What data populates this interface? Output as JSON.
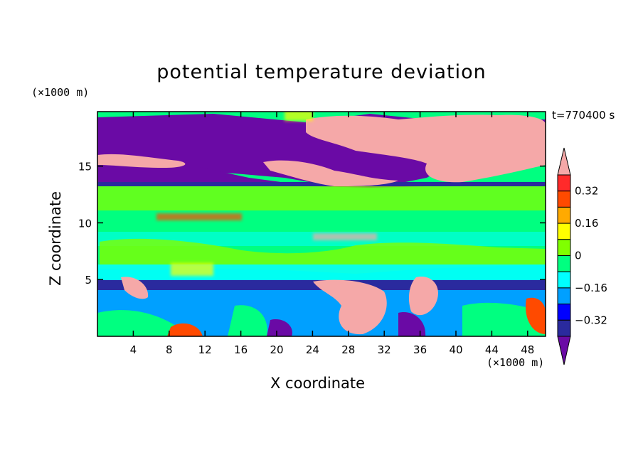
{
  "chart_data": {
    "type": "heatmap",
    "title": "potential temperature deviation",
    "xlabel": "X coordinate",
    "ylabel": "Z coordinate",
    "x_unit": "(×1000 m)",
    "y_unit": "(×1000 m)",
    "time_label": "t=770400 s",
    "xlim": [
      0,
      50
    ],
    "ylim": [
      0,
      19.8
    ],
    "x_ticks": [
      4,
      8,
      12,
      16,
      20,
      24,
      28,
      32,
      36,
      40,
      44,
      48
    ],
    "y_ticks": [
      5,
      10,
      15
    ],
    "colorbar": {
      "levels": [
        -0.4,
        -0.32,
        -0.24,
        -0.16,
        -0.08,
        0,
        0.08,
        0.16,
        0.24,
        0.32,
        0.4
      ],
      "labeled_levels": [
        0.32,
        0.16,
        0,
        -0.16,
        -0.32
      ],
      "labels": [
        "0.32",
        "0.16",
        "0",
        "−0.16",
        "−0.32"
      ],
      "colors": [
        "#6a0aa5",
        "#2a2a9e",
        "#0000ff",
        "#00a0ff",
        "#00ffff",
        "#00ff80",
        "#80ff00",
        "#ffff00",
        "#ffaa00",
        "#ff4a00",
        "#ff2a2a",
        "#f5a8a8"
      ],
      "extend": "both"
    }
  }
}
